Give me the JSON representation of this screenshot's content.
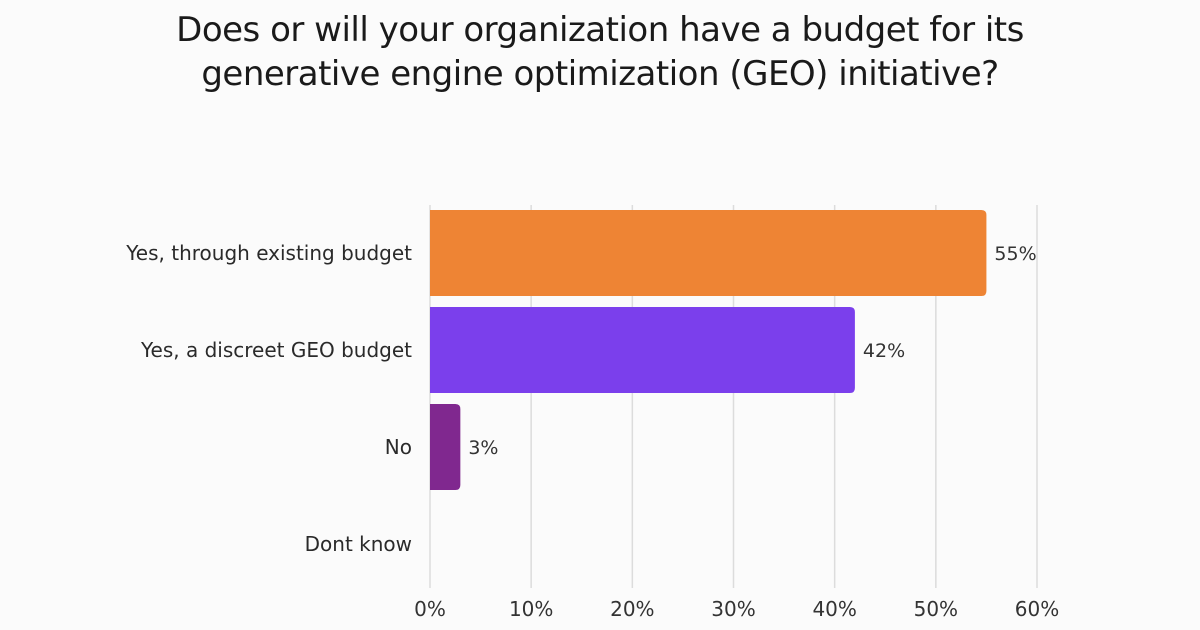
{
  "chart_data": {
    "type": "bar",
    "orientation": "horizontal",
    "title": [
      "Does or will your organization have a budget for its",
      "generative engine optimization (GEO) initiative?"
    ],
    "categories": [
      "Yes, through existing budget",
      "Yes, a discreet GEO budget",
      "No",
      "Dont know"
    ],
    "values": [
      55,
      42,
      3,
      null
    ],
    "data_labels": [
      "55%",
      "42%",
      "3%",
      ""
    ],
    "colors": [
      "#ee8434",
      "#7b3fec",
      "#80288f",
      "#80288f"
    ],
    "xlim": [
      0,
      60
    ],
    "xticks": [
      0,
      10,
      20,
      30,
      40,
      50,
      60
    ],
    "xtick_labels": [
      "0%",
      "10%",
      "20%",
      "30%",
      "40%",
      "50%",
      "60%"
    ],
    "xlabel": "",
    "ylabel": "",
    "grid": "vertical",
    "legend": "none"
  }
}
